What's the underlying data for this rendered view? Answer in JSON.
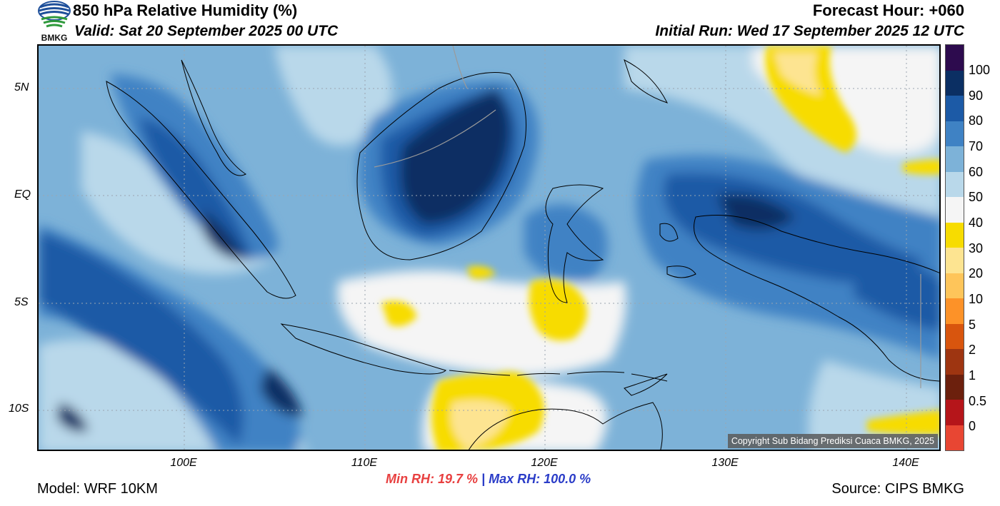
{
  "header": {
    "title": "850 hPa Relative Humidity (%)",
    "valid": "Valid: Sat 20 September 2025 00 UTC",
    "forecast_hour": "Forecast Hour: +060",
    "initial_run": "Initial Run: Wed 17 September 2025 12 UTC",
    "logo_text": "BMKG"
  },
  "map": {
    "lat_labels": [
      "5N",
      "EQ",
      "5S",
      "10S"
    ],
    "lon_labels": [
      "100E",
      "110E",
      "120E",
      "130E",
      "140E"
    ],
    "copyright": "Copyright Sub Bidang Prediksi Cuaca BMKG, 2025"
  },
  "colorbar": {
    "labels": [
      "100",
      "90",
      "80",
      "70",
      "60",
      "50",
      "40",
      "30",
      "20",
      "10",
      "5",
      "2",
      "1",
      "0.5",
      "0"
    ],
    "colors": [
      "#2d0b4e",
      "#0b2f63",
      "#1c5aa6",
      "#3f82c4",
      "#7db2d8",
      "#b9d8ea",
      "#f5f5f5",
      "#f7dc00",
      "#fde491",
      "#fec55a",
      "#fd9228",
      "#d8550e",
      "#9e3511",
      "#6c200d",
      "#b5151a",
      "#e84633"
    ]
  },
  "stats": {
    "min_rh": "Min RH:  19.7 %",
    "separator": "|",
    "max_rh": "Max RH: 100.0 %"
  },
  "footer": {
    "model": "Model: WRF 10KM",
    "source": "Source: CIPS BMKG"
  }
}
